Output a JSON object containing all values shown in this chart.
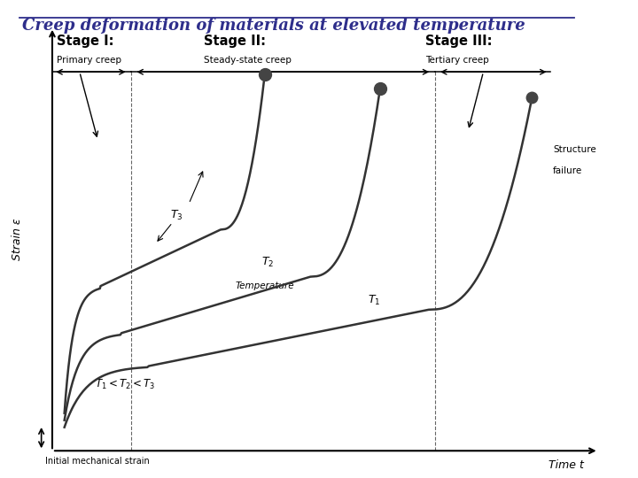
{
  "title": "Creep deformation of materials at elevated temperature",
  "title_color": "#2E2E8B",
  "title_fontsize": 13,
  "bg_color": "#FFFFFF",
  "curve_color": "#333333",
  "dot_color": "#444444",
  "ylabel": "Strain ε",
  "xlabel": "Time t",
  "stage1_label": "Stage I:",
  "stage1_sub": "Primary creep",
  "stage2_label": "Stage II:",
  "stage2_sub": "Steady-state creep",
  "stage3_label": "Stage III:",
  "stage3_sub": "Tertiary creep",
  "struct_fail_1": "Structure",
  "struct_fail_2": "failure",
  "temp_label": "Temperature",
  "init_mech": "Initial mechanical strain",
  "temp_cond": "$T_1 < T_2 < T_3$",
  "T1_label": "$T_1$",
  "T2_label": "$T_2$",
  "T3_label": "$T_3$"
}
